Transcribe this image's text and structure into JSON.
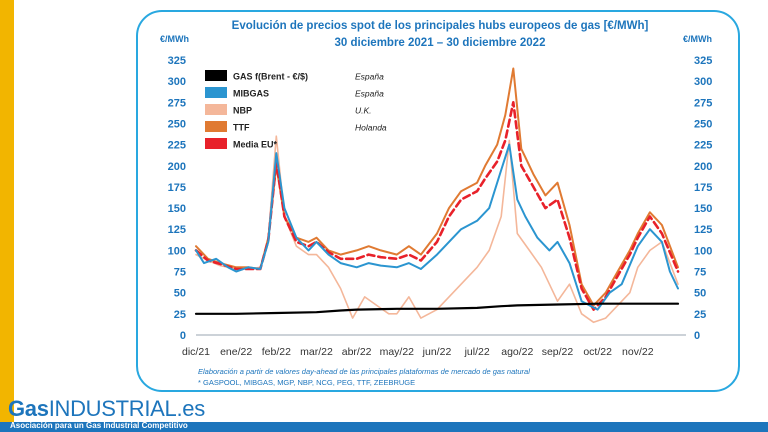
{
  "brand": {
    "word1": "Gas",
    "word2": "INDUSTRIAL",
    "suffix": ".es"
  },
  "footer": {
    "tagline": "Asociación para un Gas Industrial Competitivo"
  },
  "notes": {
    "line1": "Elaboración a partir de valores day-ahead de las principales plataformas de mercado de gas natural",
    "line2": "* GASPOOL, MIBGAS, MGP, NBP, NCG, PEG, TTF, ZEEBRUGE"
  },
  "chart_data": {
    "type": "line",
    "title": "Evolución de precios spot de los principales hubs europeos de gas [€/MWh]",
    "subtitle": "30 diciembre 2021 – 30 diciembre 2022",
    "ylabel_left": "€/MWh",
    "ylabel_right": "€/MWh",
    "ylim": [
      0,
      325
    ],
    "yticks": [
      0,
      25,
      50,
      75,
      100,
      125,
      150,
      175,
      200,
      225,
      250,
      275,
      300,
      325
    ],
    "x_ticks": [
      "dic/21",
      "ene/22",
      "feb/22",
      "mar/22",
      "abr/22",
      "may/22",
      "jun/22",
      "jul/22",
      "ago/22",
      "sep/22",
      "oct/22",
      "nov/22"
    ],
    "x_domain": [
      0,
      12.2
    ],
    "legend_position": "top-left",
    "grid": false,
    "series": [
      {
        "name": "GAS f(Brent - €/$)",
        "region": "España",
        "color": "#000000",
        "dash": "",
        "width": 2.2,
        "x": [
          0,
          1,
          2,
          3,
          3.6,
          4,
          5,
          6,
          7,
          7.6,
          8,
          9,
          10,
          11,
          12
        ],
        "values": [
          25,
          25,
          26,
          27,
          29,
          30,
          31,
          31,
          32,
          34,
          35,
          36,
          37,
          37,
          37
        ]
      },
      {
        "name": "MIBGAS",
        "region": "España",
        "color": "#2b95d0",
        "dash": "",
        "width": 2,
        "x": [
          0,
          0.2,
          0.5,
          0.8,
          1,
          1.3,
          1.6,
          1.8,
          2,
          2.2,
          2.5,
          2.8,
          3,
          3.3,
          3.6,
          4,
          4.3,
          4.6,
          5,
          5.3,
          5.6,
          6,
          6.3,
          6.6,
          7,
          7.3,
          7.6,
          7.8,
          8,
          8.2,
          8.5,
          8.8,
          9,
          9.3,
          9.6,
          10,
          10.3,
          10.6,
          11,
          11.3,
          11.6,
          11.8,
          12
        ],
        "values": [
          100,
          85,
          90,
          80,
          75,
          80,
          78,
          110,
          215,
          150,
          115,
          100,
          110,
          95,
          85,
          80,
          85,
          82,
          80,
          85,
          78,
          95,
          110,
          125,
          135,
          150,
          195,
          225,
          160,
          140,
          115,
          100,
          110,
          85,
          40,
          30,
          50,
          60,
          105,
          125,
          110,
          75,
          55
        ]
      },
      {
        "name": "NBP",
        "region": "U.K.",
        "color": "#f4b79a",
        "dash": "",
        "width": 1.6,
        "x": [
          0,
          0.3,
          0.6,
          1,
          1.3,
          1.6,
          1.8,
          2,
          2.2,
          2.5,
          2.8,
          3,
          3.3,
          3.6,
          3.9,
          4.2,
          4.5,
          4.8,
          5,
          5.3,
          5.6,
          6,
          6.3,
          6.6,
          7,
          7.3,
          7.6,
          7.8,
          8,
          8.3,
          8.6,
          9,
          9.3,
          9.6,
          9.9,
          10.2,
          10.5,
          10.8,
          11,
          11.3,
          11.6,
          12
        ],
        "values": [
          95,
          88,
          82,
          78,
          78,
          80,
          115,
          235,
          140,
          105,
          95,
          95,
          80,
          55,
          20,
          45,
          35,
          25,
          25,
          45,
          20,
          30,
          45,
          60,
          80,
          100,
          140,
          230,
          120,
          100,
          80,
          40,
          60,
          25,
          15,
          20,
          35,
          50,
          80,
          100,
          110,
          60
        ]
      },
      {
        "name": "TTF",
        "region": "Holanda",
        "color": "#e07a32",
        "dash": "",
        "width": 2,
        "x": [
          0,
          0.3,
          0.6,
          1,
          1.3,
          1.6,
          1.8,
          2,
          2.2,
          2.5,
          2.8,
          3,
          3.3,
          3.6,
          4,
          4.3,
          4.6,
          5,
          5.3,
          5.6,
          6,
          6.3,
          6.6,
          7,
          7.2,
          7.5,
          7.7,
          7.9,
          8.1,
          8.4,
          8.7,
          9,
          9.3,
          9.6,
          9.9,
          10.2,
          10.5,
          10.8,
          11,
          11.3,
          11.6,
          12
        ],
        "values": [
          105,
          90,
          85,
          80,
          80,
          78,
          115,
          200,
          140,
          115,
          110,
          115,
          100,
          95,
          100,
          105,
          100,
          95,
          105,
          95,
          120,
          150,
          170,
          180,
          200,
          225,
          260,
          315,
          220,
          190,
          165,
          180,
          130,
          60,
          35,
          50,
          75,
          100,
          120,
          145,
          130,
          80
        ]
      },
      {
        "name": "Media EU*",
        "region": "",
        "color": "#e8212a",
        "dash": "7 4",
        "width": 2.6,
        "x": [
          0,
          0.3,
          0.6,
          1,
          1.3,
          1.6,
          1.8,
          2,
          2.2,
          2.5,
          2.8,
          3,
          3.3,
          3.6,
          4,
          4.3,
          4.6,
          5,
          5.3,
          5.6,
          6,
          6.3,
          6.6,
          7,
          7.2,
          7.5,
          7.7,
          7.9,
          8.1,
          8.4,
          8.7,
          9,
          9.3,
          9.6,
          9.9,
          10.2,
          10.5,
          10.8,
          11,
          11.3,
          11.6,
          12
        ],
        "values": [
          100,
          88,
          84,
          78,
          78,
          78,
          112,
          205,
          140,
          110,
          105,
          110,
          98,
          90,
          90,
          95,
          92,
          90,
          95,
          88,
          110,
          140,
          160,
          170,
          185,
          205,
          230,
          275,
          200,
          175,
          150,
          160,
          115,
          55,
          30,
          45,
          70,
          95,
          115,
          140,
          120,
          75
        ]
      }
    ]
  }
}
